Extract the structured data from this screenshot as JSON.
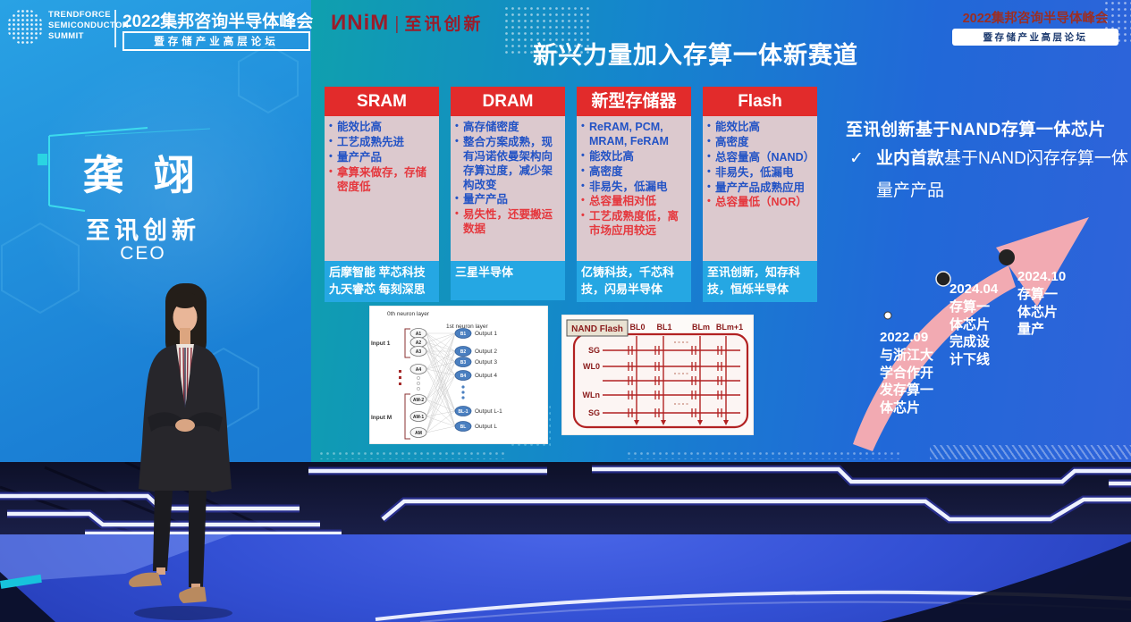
{
  "header_left": {
    "logo_lines": [
      "Trendforce",
      "Semiconductor",
      "Summit"
    ],
    "title": "2022集邦咨询半导体峰会",
    "subtitle": "暨存储产业高层论坛"
  },
  "header_right": {
    "title": "2022集邦咨询半导体峰会",
    "subtitle": "暨存储产业高层论坛"
  },
  "speaker_card": {
    "name": "龚 翊",
    "company": "至讯创新",
    "title": "CEO"
  },
  "slide": {
    "brand": {
      "logo": "ИNiM",
      "divider": "|",
      "name": "至讯创新"
    },
    "title": "新兴力量加入存算一体新赛道",
    "columns": [
      {
        "header": "SRAM",
        "pros": [
          "能效比高",
          "工艺成熟先进",
          "量产产品"
        ],
        "cons": [
          "拿算来做存，存储密度低"
        ],
        "companies": "后摩智能 苹芯科技 九天睿芯 每刻深思"
      },
      {
        "header": "DRAM",
        "pros": [
          "高存储密度",
          "整合方案成熟，现有冯诺依曼架构向存算过度，减少架构改变",
          "量产产品"
        ],
        "cons": [
          "易失性，还要搬运数据"
        ],
        "companies": "三星半导体"
      },
      {
        "header": "新型存储器",
        "pros": [
          "ReRAM, PCM, MRAM, FeRAM",
          "能效比高",
          "高密度",
          "非易失，低漏电"
        ],
        "cons": [
          "总容量相对低",
          "工艺成熟度低，离市场应用较远"
        ],
        "companies": "亿铸科技，千芯科技，闪易半导体"
      },
      {
        "header": "Flash",
        "pros": [
          "能效比高",
          "高密度",
          "总容量高（NAND）",
          "非易失，低漏电",
          "量产产品成熟应用"
        ],
        "cons": [
          "总容量低（NOR）"
        ],
        "companies": "至讯创新，知存科技，恒烁半导体"
      }
    ],
    "highlight": {
      "heading": "至讯创新基于NAND存算一体芯片",
      "check": "✓",
      "bold": "业内首款",
      "rest": "基于NAND闪存存算一体量产产品"
    },
    "timeline": [
      {
        "date": "2022.09",
        "desc": "与浙江大学合作开发存算一体芯片"
      },
      {
        "date": "2024.04",
        "desc": "存算一体芯片完成设计下线"
      },
      {
        "date": "2024.10",
        "desc": "存算一体芯片量产"
      }
    ],
    "nn_diagram": {
      "layer0_label": "0th neuron layer",
      "layer1_label": "1st neuron layer",
      "input_first": "Input 1",
      "input_last": "Input M",
      "a_nodes": [
        "A1",
        "A2",
        "A3",
        "A4",
        "AM-2",
        "AM-1",
        "AM"
      ],
      "b_nodes": [
        "B1",
        "B2",
        "B3",
        "B4",
        "BL-1",
        "BL"
      ],
      "outputs": [
        "Output 1",
        "Output 2",
        "Output 3",
        "Output 4",
        "Output L-1",
        "Output L"
      ]
    },
    "nand_diagram": {
      "label": "NAND Flash",
      "bitlines": [
        "BL0",
        "BL1",
        "BLm",
        "BLm+1"
      ],
      "wordlines": [
        "SG",
        "WL0",
        "WLn",
        "SG"
      ]
    }
  },
  "colors": {
    "slide_teal": "#0FA0AE",
    "slide_blue": "#2A62D8",
    "column_header_red": "#E22B2B",
    "column_body_pink": "#DCC9CE",
    "column_footer_blue": "#25A7E3",
    "pro_text_blue": "#2353C5",
    "con_text_red": "#E5383E",
    "timeline_arrow_pink": "#F2AAB2",
    "brand_red": "#9B1C2A"
  }
}
